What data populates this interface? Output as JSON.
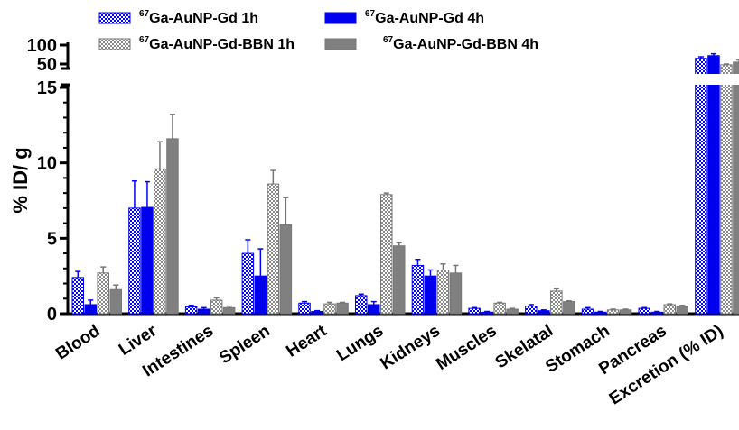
{
  "chart_data": {
    "type": "bar",
    "ylabel": "% ID/ g",
    "categories": [
      "Blood",
      "Liver",
      "Intestines",
      "Spleen",
      "Heart",
      "Lungs",
      "Kidneys",
      "Muscles",
      "Skelatal",
      "Stomach",
      "Pancreas",
      "Excretion (% ID)"
    ],
    "y_ticks_lower": [
      "0",
      "5",
      "10",
      "15"
    ],
    "y_ticks_upper": [
      "50",
      "100"
    ],
    "ylim_lower": [
      0,
      15
    ],
    "ylim_upper": [
      15,
      100
    ],
    "axis_break": true,
    "legend_position": "top",
    "series": [
      {
        "name_sup": "67",
        "name": "Ga-AuNP-Gd 1h",
        "color": "#0000ff",
        "pattern": "checker-blue",
        "values": [
          2.4,
          7.0,
          0.45,
          4.0,
          0.7,
          1.2,
          3.2,
          0.35,
          0.5,
          0.3,
          0.35,
          65
        ],
        "errors": [
          0.4,
          1.8,
          0.1,
          0.9,
          0.1,
          0.1,
          0.4,
          0.05,
          0.1,
          0.1,
          0.05,
          4
        ]
      },
      {
        "name_sup": "67",
        "name": "Ga-AuNP-Gd 4h",
        "color": "#0000ee",
        "pattern": "solid-blue",
        "values": [
          0.6,
          7.05,
          0.3,
          2.5,
          0.15,
          0.6,
          2.5,
          0.1,
          0.2,
          0.1,
          0.1,
          72
        ],
        "errors": [
          0.3,
          1.7,
          0.1,
          1.8,
          0.05,
          0.2,
          0.4,
          0.05,
          0.05,
          0.05,
          0.05,
          5
        ]
      },
      {
        "name_sup": "67",
        "name": "Ga-AuNP-Gd-BBN 1h",
        "color": "#888888",
        "pattern": "checker-gray",
        "values": [
          2.7,
          9.6,
          0.9,
          8.6,
          0.65,
          7.9,
          2.9,
          0.7,
          1.5,
          0.25,
          0.6,
          48
        ],
        "errors": [
          0.4,
          1.8,
          0.15,
          0.9,
          0.1,
          0.1,
          0.4,
          0.05,
          0.15,
          0.05,
          0.05,
          2
        ]
      },
      {
        "name_sup": "67",
        "name": "Ga-AuNP-Gd-BBN 4h",
        "color": "#808080",
        "pattern": "solid-gray",
        "values": [
          1.6,
          11.6,
          0.4,
          5.9,
          0.7,
          4.5,
          2.7,
          0.3,
          0.8,
          0.25,
          0.5,
          55
        ],
        "errors": [
          0.3,
          1.6,
          0.1,
          1.8,
          0.05,
          0.2,
          0.5,
          0.05,
          0.05,
          0.05,
          0.05,
          6
        ]
      }
    ]
  }
}
